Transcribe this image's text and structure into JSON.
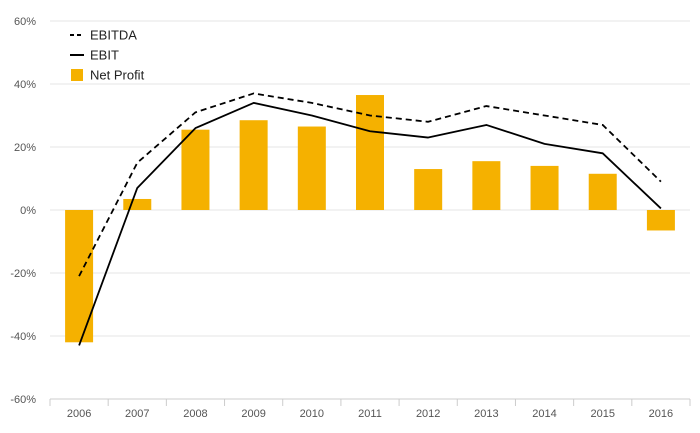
{
  "chart_data": {
    "type": "bar",
    "categories": [
      "2006",
      "2007",
      "2008",
      "2009",
      "2010",
      "2011",
      "2012",
      "2013",
      "2014",
      "2015",
      "2016"
    ],
    "series": [
      {
        "name": "EBITDA",
        "type": "line",
        "dash": true,
        "color": "#000000",
        "values": [
          -21,
          15,
          31,
          37,
          34,
          30,
          28,
          33,
          30,
          27,
          9
        ]
      },
      {
        "name": "EBIT",
        "type": "line",
        "dash": false,
        "color": "#000000",
        "values": [
          -43,
          7,
          26,
          34,
          30,
          25,
          23,
          27,
          21,
          18,
          0.5
        ]
      },
      {
        "name": "Net Profit",
        "type": "bar",
        "color": "#f5b100",
        "values": [
          -42,
          3.5,
          25.5,
          28.5,
          26.5,
          36.5,
          13,
          15.5,
          14,
          11.5,
          -6.5
        ]
      }
    ],
    "ylim": [
      -60,
      60
    ],
    "yticks": [
      60,
      40,
      20,
      0,
      -20,
      -40,
      -60
    ],
    "ytick_format": "percent",
    "grid": true,
    "legend": "top-left",
    "title": "",
    "xlabel": "",
    "ylabel": ""
  }
}
